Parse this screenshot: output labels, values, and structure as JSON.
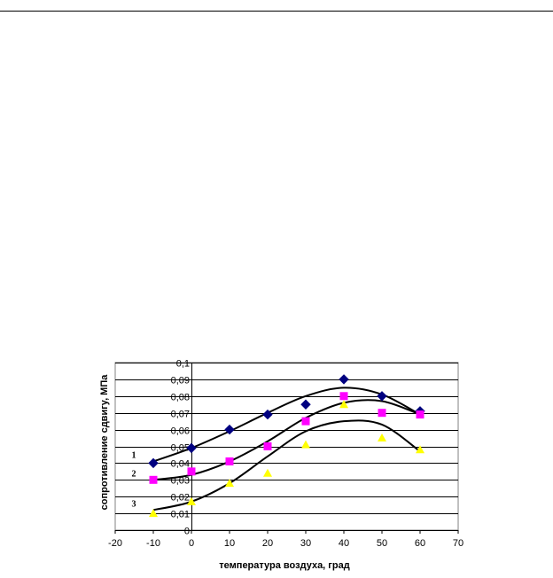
{
  "chart_data": {
    "type": "scatter",
    "xlabel": "температура воздуха, град",
    "ylabel": "сопротивление сдвигу, МПа",
    "xlim": [
      -20,
      70
    ],
    "ylim": [
      0,
      0.1
    ],
    "x_ticks": [
      "-20",
      "-10",
      "0",
      "10",
      "20",
      "30",
      "40",
      "50",
      "60",
      "70"
    ],
    "y_ticks": [
      "0",
      "0,01",
      "0,02",
      "0,03",
      "0,04",
      "0,05",
      "0,06",
      "0,07",
      "0,08",
      "0,09",
      "0,1"
    ],
    "grid": "horizontal",
    "curve_labels": [
      "1",
      "2",
      "3"
    ],
    "series": [
      {
        "label": "1",
        "marker": "diamond",
        "color": "#000080",
        "x": [
          -10,
          0,
          10,
          20,
          30,
          40,
          50,
          60
        ],
        "y": [
          0.04,
          0.049,
          0.06,
          0.069,
          0.075,
          0.09,
          0.08,
          0.071
        ],
        "trend_y": [
          0.041,
          0.049,
          0.059,
          0.07,
          0.08,
          0.085,
          0.081,
          0.069
        ]
      },
      {
        "label": "2",
        "marker": "square",
        "color": "#FF00FF",
        "x": [
          -10,
          0,
          10,
          20,
          30,
          40,
          50,
          60
        ],
        "y": [
          0.03,
          0.035,
          0.041,
          0.05,
          0.065,
          0.08,
          0.07,
          0.069
        ],
        "trend_y": [
          0.03,
          0.033,
          0.041,
          0.053,
          0.067,
          0.076,
          0.077,
          0.069
        ]
      },
      {
        "label": "3",
        "marker": "triangle",
        "color": "#FFFF00",
        "x": [
          -10,
          0,
          10,
          20,
          30,
          40,
          50,
          60
        ],
        "y": [
          0.01,
          0.017,
          0.028,
          0.034,
          0.051,
          0.075,
          0.055,
          0.048
        ],
        "trend_y": [
          0.012,
          0.017,
          0.028,
          0.044,
          0.059,
          0.065,
          0.063,
          0.047
        ]
      }
    ]
  }
}
